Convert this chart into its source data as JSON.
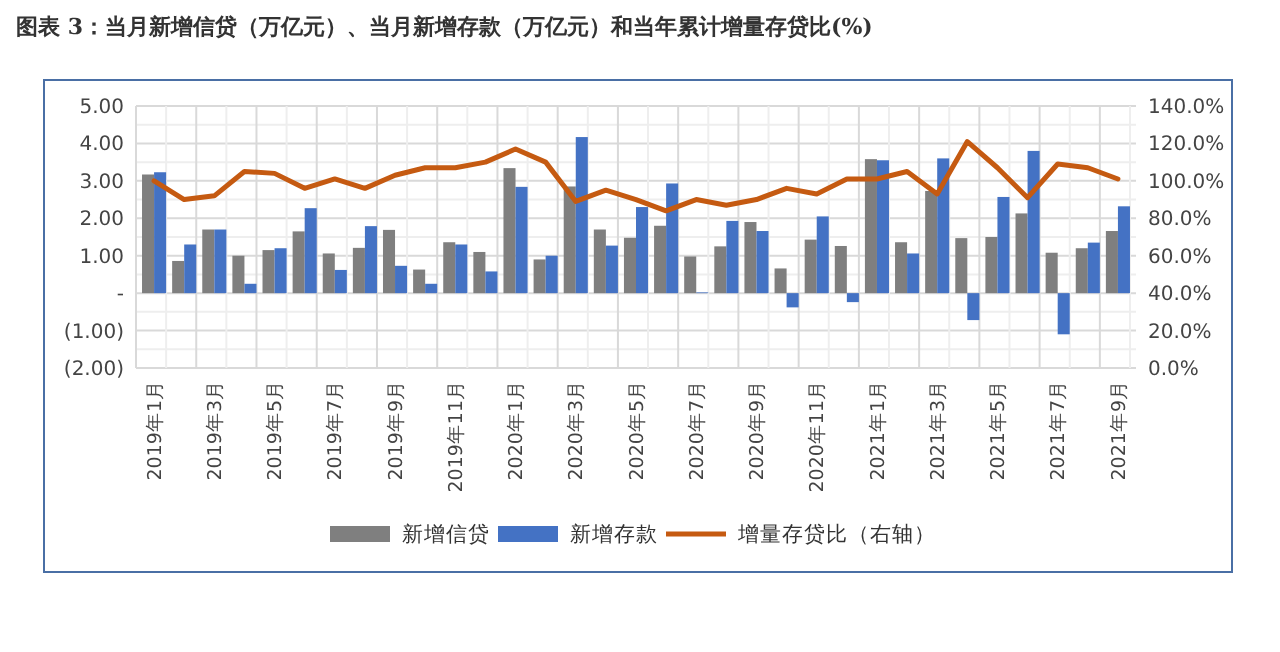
{
  "chart_data": {
    "type": "bar",
    "title": "图表 3：当月新增信贷（万亿元）、当月新增存款（万亿元）和当年累计增量存贷比(%)",
    "categories": [
      "2019年1月",
      null,
      "2019年3月",
      null,
      "2019年5月",
      null,
      "2019年7月",
      null,
      "2019年9月",
      null,
      "2019年11月",
      null,
      "2020年1月",
      null,
      "2020年3月",
      null,
      "2020年5月",
      null,
      "2020年7月",
      null,
      "2020年9月",
      null,
      "2020年11月",
      null,
      "2021年1月",
      null,
      "2021年3月",
      null,
      "2021年5月",
      null,
      "2021年7月",
      null,
      "2021年9月"
    ],
    "series": [
      {
        "name": "新增信贷",
        "color": "#7f7f7f",
        "values": [
          3.17,
          0.86,
          1.7,
          1.0,
          1.15,
          1.65,
          1.06,
          1.21,
          1.69,
          0.63,
          1.36,
          1.1,
          3.34,
          0.9,
          2.85,
          1.7,
          1.48,
          1.8,
          0.98,
          1.25,
          1.9,
          0.66,
          1.43,
          1.26,
          3.58,
          1.36,
          2.73,
          1.47,
          1.5,
          2.13,
          1.08,
          1.2,
          1.66
        ]
      },
      {
        "name": "新增存款",
        "color": "#4472c4",
        "values": [
          3.23,
          1.3,
          1.7,
          0.25,
          1.2,
          2.27,
          0.62,
          1.79,
          0.73,
          0.25,
          1.3,
          0.58,
          2.84,
          1.0,
          4.17,
          1.27,
          2.3,
          2.93,
          0.02,
          1.93,
          1.66,
          -0.38,
          2.05,
          -0.24,
          3.55,
          1.06,
          3.6,
          -0.72,
          2.57,
          3.8,
          -1.1,
          1.35,
          2.32
        ]
      },
      {
        "name": "增量存贷比（右轴）",
        "color": "#c55a11",
        "type": "line",
        "axis": "y2",
        "values": [
          100,
          90,
          92,
          105,
          104,
          96,
          101,
          96,
          103,
          107,
          107,
          110,
          117,
          110,
          89,
          95,
          90,
          84,
          90,
          87,
          90,
          96,
          93,
          101,
          101,
          105,
          93,
          121,
          107,
          91,
          109,
          107,
          101
        ]
      }
    ],
    "ylim": [
      -2,
      5
    ],
    "yticks": [
      {
        "value": 5,
        "label": "5.00"
      },
      {
        "value": 4,
        "label": "4.00"
      },
      {
        "value": 3,
        "label": "3.00"
      },
      {
        "value": 2,
        "label": "2.00"
      },
      {
        "value": 1,
        "label": "1.00"
      },
      {
        "value": 0,
        "label": "-"
      },
      {
        "value": -1,
        "label": "(1.00)"
      },
      {
        "value": -2,
        "label": "(2.00)"
      }
    ],
    "y2lim": [
      0,
      140
    ],
    "y2ticks": [
      {
        "value": 140,
        "label": "140.0%"
      },
      {
        "value": 120,
        "label": "120.0%"
      },
      {
        "value": 100,
        "label": "100.0%"
      },
      {
        "value": 80,
        "label": "80.0%"
      },
      {
        "value": 60,
        "label": "60.0%"
      },
      {
        "value": 40,
        "label": "40.0%"
      },
      {
        "value": 20,
        "label": "20.0%"
      },
      {
        "value": 0,
        "label": "0.0%"
      }
    ],
    "grid": true,
    "legend": "bottom"
  }
}
